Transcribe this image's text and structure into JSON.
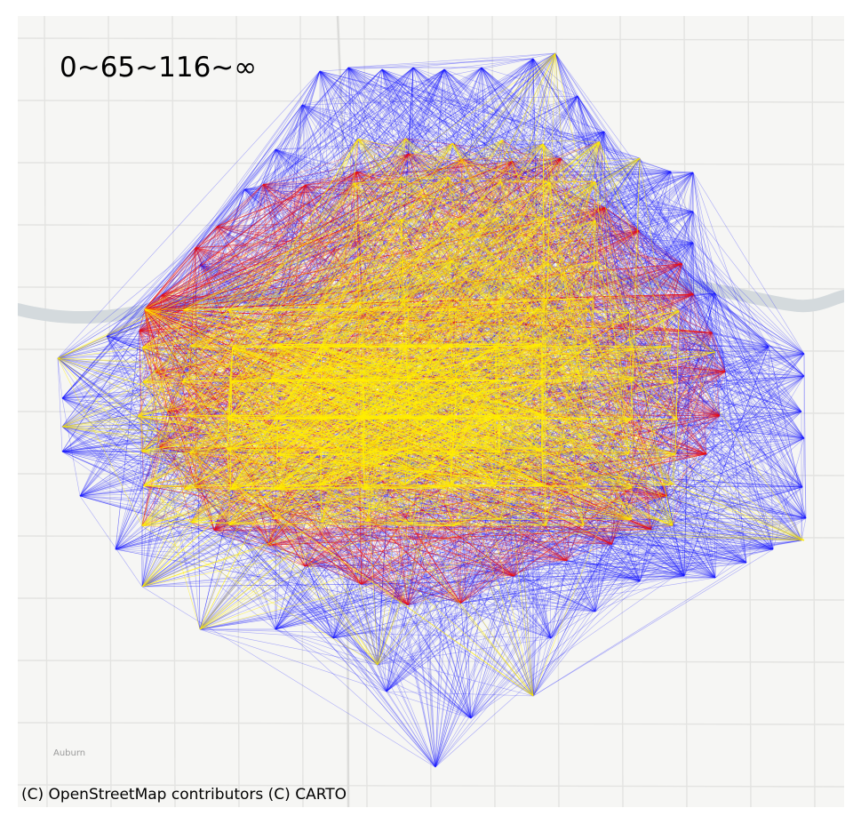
{
  "map": {
    "legend_title": "0~65~116~∞",
    "attribution": "(C) OpenStreetMap contributors (C) CARTO",
    "place_label": "Auburn",
    "colors": {
      "basemap_background": "#f6f6f4",
      "road": "#e3e3e1",
      "river": "#d4dadd",
      "low_band": "#1a1aff",
      "mid_band": "#ee1111",
      "high_band": "#ffee00"
    },
    "legend_bands": [
      {
        "range": "0~65",
        "color": "blue"
      },
      {
        "range": "65~116",
        "color": "red"
      },
      {
        "range": "116~∞",
        "color": "yellow"
      }
    ]
  }
}
